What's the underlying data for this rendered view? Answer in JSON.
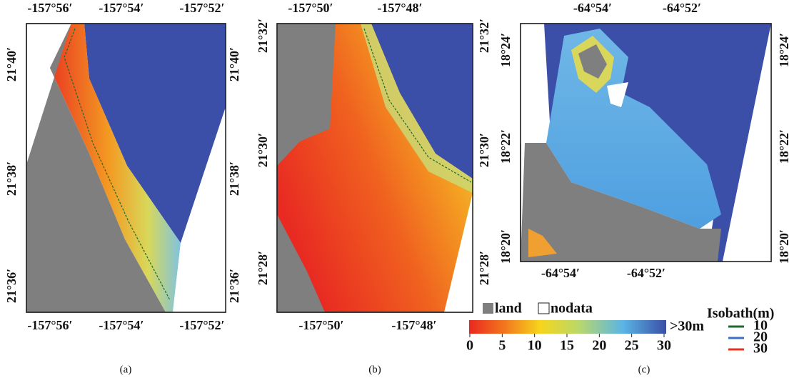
{
  "panels": [
    {
      "caption": "(a)",
      "lon_ticks": [
        "-157°56′",
        "-157°54′",
        "-157°52′"
      ],
      "lat_ticks": [
        "21°40′",
        "21°38′",
        "21°36′"
      ]
    },
    {
      "caption": "(b)",
      "lon_ticks": [
        "-157°50′",
        "-157°48′"
      ],
      "lat_ticks": [
        "21°32′",
        "21°30′",
        "21°28′"
      ]
    },
    {
      "caption": "(c)",
      "lon_ticks": [
        "-64°54′",
        "-64°52′"
      ],
      "lat_ticks": [
        "18°24′",
        "18°22′",
        "18°20′"
      ]
    }
  ],
  "legend": {
    "land": "land",
    "nodata": "nodata",
    "colorbar": {
      "range": [
        0,
        30
      ],
      "ticks": [
        0,
        5,
        10,
        15,
        20,
        25,
        30
      ],
      "over_label": ">30m"
    },
    "isobath": {
      "title": "Isobath(m)",
      "items": [
        {
          "label": 10,
          "color": "#1d6a2c"
        },
        {
          "label": 20,
          "color": "#3f6fc2"
        },
        {
          "label": 30,
          "color": "#e8321e"
        }
      ]
    }
  }
}
